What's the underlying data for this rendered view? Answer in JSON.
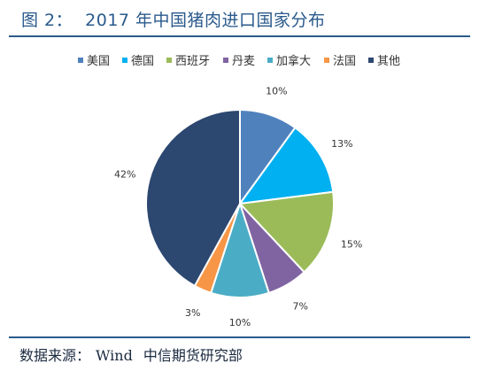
{
  "figure": {
    "number": "图  2：",
    "title": "2017 年中国猪肉进口国家分布"
  },
  "source": {
    "label": "数据来源：",
    "provider": "Wind",
    "org": "中信期货研究部"
  },
  "chart_data": {
    "type": "pie",
    "categories": [
      "美国",
      "德国",
      "西班牙",
      "丹麦",
      "加拿大",
      "法国",
      "其他"
    ],
    "values": [
      10,
      13,
      15,
      7,
      10,
      3,
      42
    ],
    "labels": [
      "10%",
      "13%",
      "15%",
      "7%",
      "10%",
      "3%",
      "42%"
    ],
    "colors": [
      "#4f81bd",
      "#00b0f0",
      "#9bbb59",
      "#8064a2",
      "#4bacc6",
      "#f79646",
      "#2c4770"
    ],
    "start": "12 o'clock",
    "direction": "clockwise",
    "legend_position": "top"
  }
}
